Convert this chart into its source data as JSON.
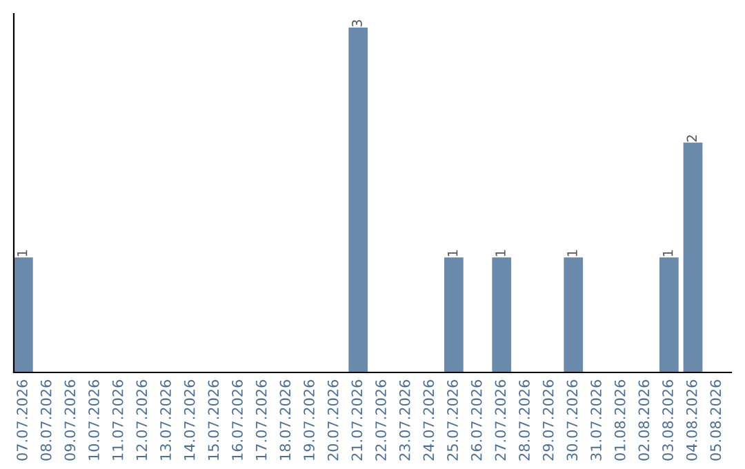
{
  "chart_data": {
    "type": "bar",
    "categories": [
      "07.07.2026",
      "08.07.2026",
      "09.07.2026",
      "10.07.2026",
      "11.07.2026",
      "12.07.2026",
      "13.07.2026",
      "14.07.2026",
      "15.07.2026",
      "16.07.2026",
      "17.07.2026",
      "18.07.2026",
      "19.07.2026",
      "20.07.2026",
      "21.07.2026",
      "22.07.2026",
      "23.07.2026",
      "24.07.2026",
      "25.07.2026",
      "26.07.2026",
      "27.07.2026",
      "28.07.2026",
      "29.07.2026",
      "30.07.2026",
      "31.07.2026",
      "01.08.2026",
      "02.08.2026",
      "03.08.2026",
      "04.08.2026",
      "05.08.2026"
    ],
    "values": [
      1,
      0,
      0,
      0,
      0,
      0,
      0,
      0,
      0,
      0,
      0,
      0,
      0,
      0,
      3,
      0,
      0,
      0,
      1,
      0,
      1,
      0,
      0,
      1,
      0,
      0,
      0,
      1,
      2,
      0
    ],
    "value_labels": [
      "1",
      null,
      null,
      null,
      null,
      null,
      null,
      null,
      null,
      null,
      null,
      null,
      null,
      null,
      "3",
      null,
      null,
      null,
      "1",
      null,
      "1",
      null,
      null,
      "1",
      null,
      null,
      null,
      "1",
      "2",
      null
    ],
    "color": "#6a8aab",
    "grid": false,
    "legend": false,
    "tick_labels": "x"
  }
}
